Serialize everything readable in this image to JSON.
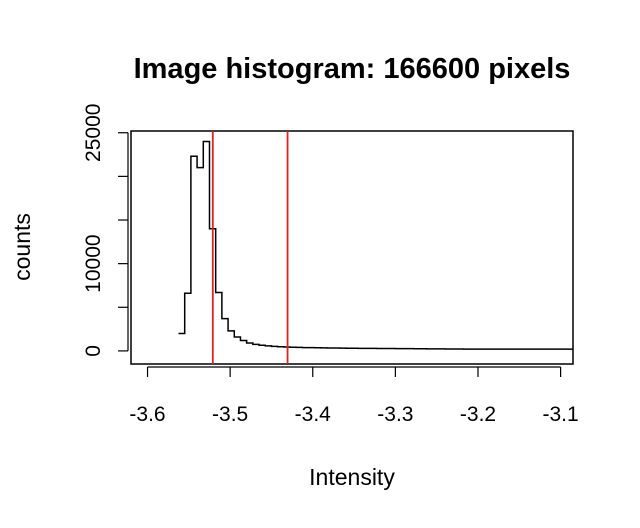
{
  "chart_data": {
    "type": "histogram",
    "title": "Image histogram: 166600 pixels",
    "xlabel": "Intensity",
    "ylabel": "counts",
    "xlim": [
      -3.62,
      -3.085
    ],
    "ylim": [
      -1500,
      25200
    ],
    "x_ticks": [
      -3.6,
      -3.5,
      -3.4,
      -3.3,
      -3.2,
      -3.1
    ],
    "x_tick_labels": [
      "-3.6",
      "-3.5",
      "-3.4",
      "-3.3",
      "-3.2",
      "-3.1"
    ],
    "y_ticks": [
      0,
      5000,
      10000,
      15000,
      20000,
      25000
    ],
    "y_tick_labels": [
      "0",
      "",
      "10000",
      "",
      "",
      "25000"
    ],
    "bin_width": 0.0075,
    "bin_edges_start": -3.5625,
    "counts": [
      2000,
      6600,
      22300,
      21000,
      24000,
      14000,
      6700,
      3700,
      2300,
      1600,
      1200,
      900,
      750,
      650,
      580,
      520,
      480,
      450,
      420,
      400,
      380,
      370,
      360,
      350,
      340,
      330,
      320,
      310,
      300,
      295,
      290,
      285,
      280,
      275,
      270,
      265,
      260,
      255,
      250,
      245,
      240,
      235,
      230,
      225,
      220,
      215,
      210,
      205,
      200,
      200,
      200,
      200,
      200,
      200,
      200,
      200,
      200,
      200,
      200,
      200,
      200,
      200,
      200,
      200,
      200,
      200
    ],
    "vlines": [
      -3.521,
      -3.4305
    ],
    "vline_color": "#dd2222",
    "line_color": "#000000",
    "grid": false,
    "legend": "none"
  }
}
